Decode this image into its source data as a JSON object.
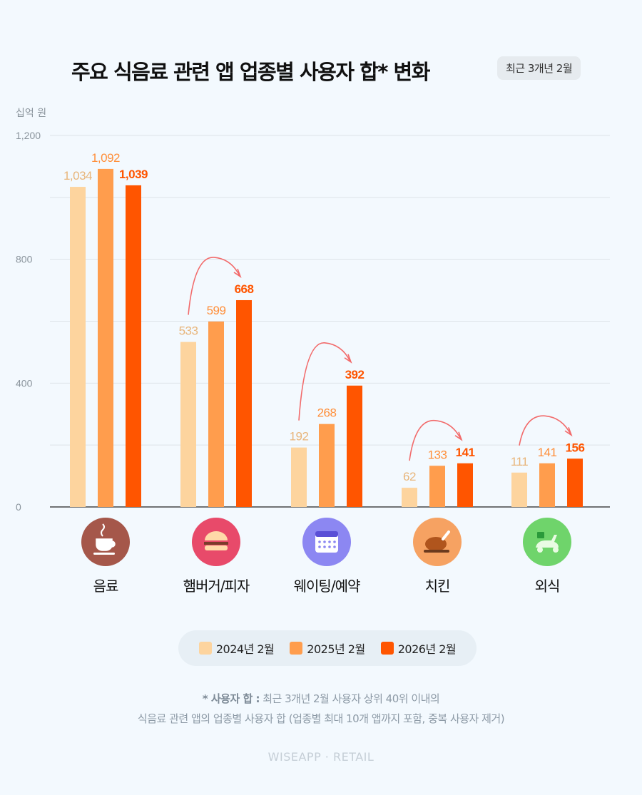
{
  "header": {
    "title": "주요 식음료 관련 앱 업종별 사용자 합* 변화",
    "badge": "최근 3개년 2월"
  },
  "colors": {
    "s2024": "#fdd49e",
    "s2025": "#ff9d4d",
    "s2026": "#ff5500",
    "label2024": "#e8b57a",
    "label2025": "#ff8f3a",
    "label2026": "#ff5500",
    "arrow": "#f26b6b"
  },
  "chart_data": {
    "type": "bar",
    "ylabel": "십억 원",
    "ylim": [
      0,
      1200
    ],
    "yticks": [
      "0",
      "400",
      "800",
      "1,200"
    ],
    "grid": true,
    "legend_position": "bottom",
    "categories": [
      "음료",
      "햄버거/피자",
      "웨이팅/예약",
      "치킨",
      "외식"
    ],
    "category_icons": [
      {
        "name": "coffee-cup-icon",
        "color": "#a5574a"
      },
      {
        "name": "hamburger-icon",
        "color": "#e84a6a"
      },
      {
        "name": "calendar-icon",
        "color": "#8c87f2"
      },
      {
        "name": "roast-chicken-icon",
        "color": "#f6a262"
      },
      {
        "name": "delivery-scooter-icon",
        "color": "#6fd46b"
      }
    ],
    "series": [
      {
        "name": "2024년 2월",
        "values": [
          1034,
          533,
          192,
          62,
          111
        ],
        "labels": [
          "1,034",
          "533",
          "192",
          "62",
          "111"
        ]
      },
      {
        "name": "2025년 2월",
        "values": [
          1092,
          599,
          268,
          133,
          141
        ],
        "labels": [
          "1,092",
          "599",
          "268",
          "133",
          "141"
        ]
      },
      {
        "name": "2026년 2월",
        "values": [
          1039,
          668,
          392,
          141,
          156
        ],
        "labels": [
          "1,039",
          "668",
          "392",
          "141",
          "156"
        ]
      }
    ],
    "growth_arrows": [
      false,
      true,
      true,
      true,
      true
    ]
  },
  "footnote": {
    "bold": "* 사용자 합 :",
    "line1": " 최근 3개년 2월 사용자 상위 40위 이내의",
    "line2": "식음료 관련 앱의 업종별 사용자 합 (업종별 최대 10개 앱까지 포함, 중복 사용자 제거)"
  },
  "brand": "WISEAPP · RETAIL"
}
